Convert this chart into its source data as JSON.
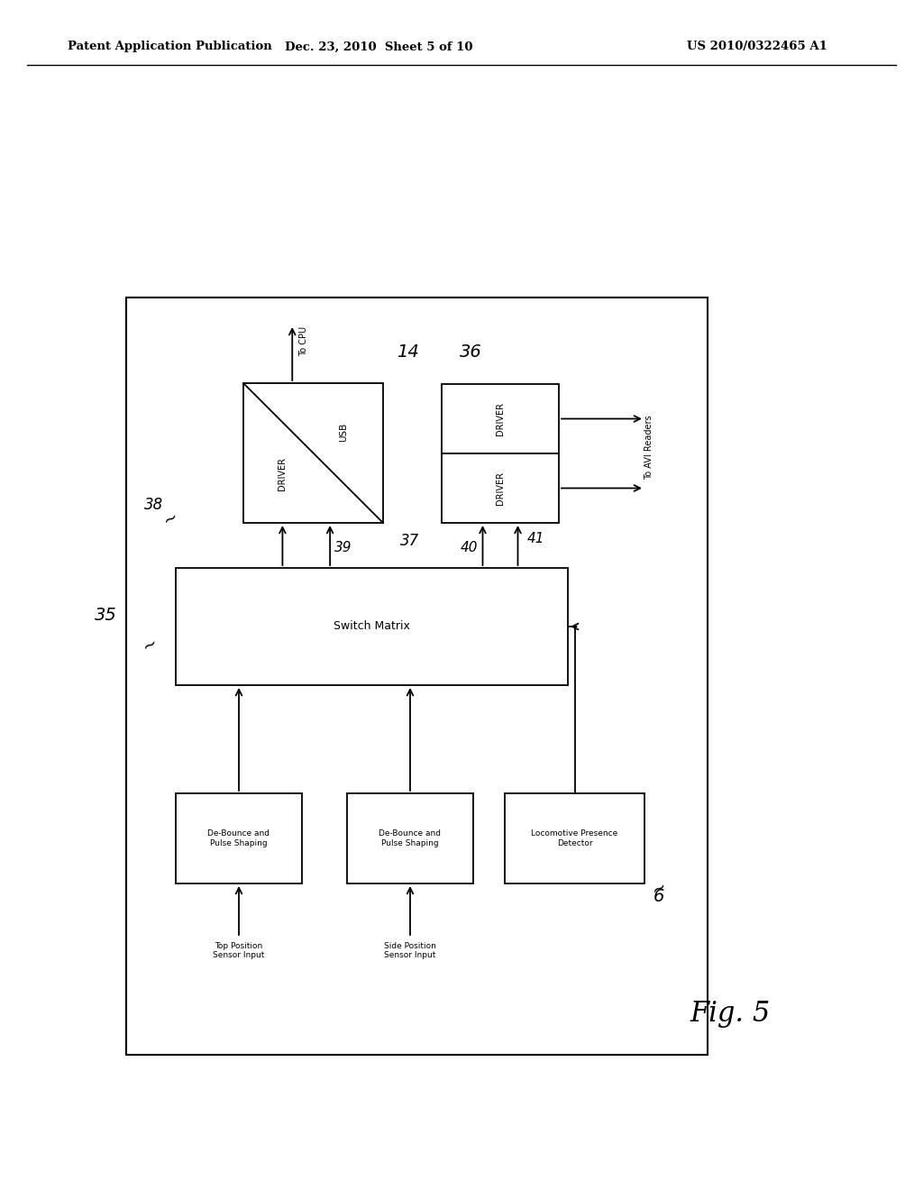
{
  "bg_color": "#ffffff",
  "header_left": "Patent Application Publication",
  "header_mid": "Dec. 23, 2010  Sheet 5 of 10",
  "header_right": "US 2010/0322465 A1",
  "fig_label": "Fig. 5"
}
